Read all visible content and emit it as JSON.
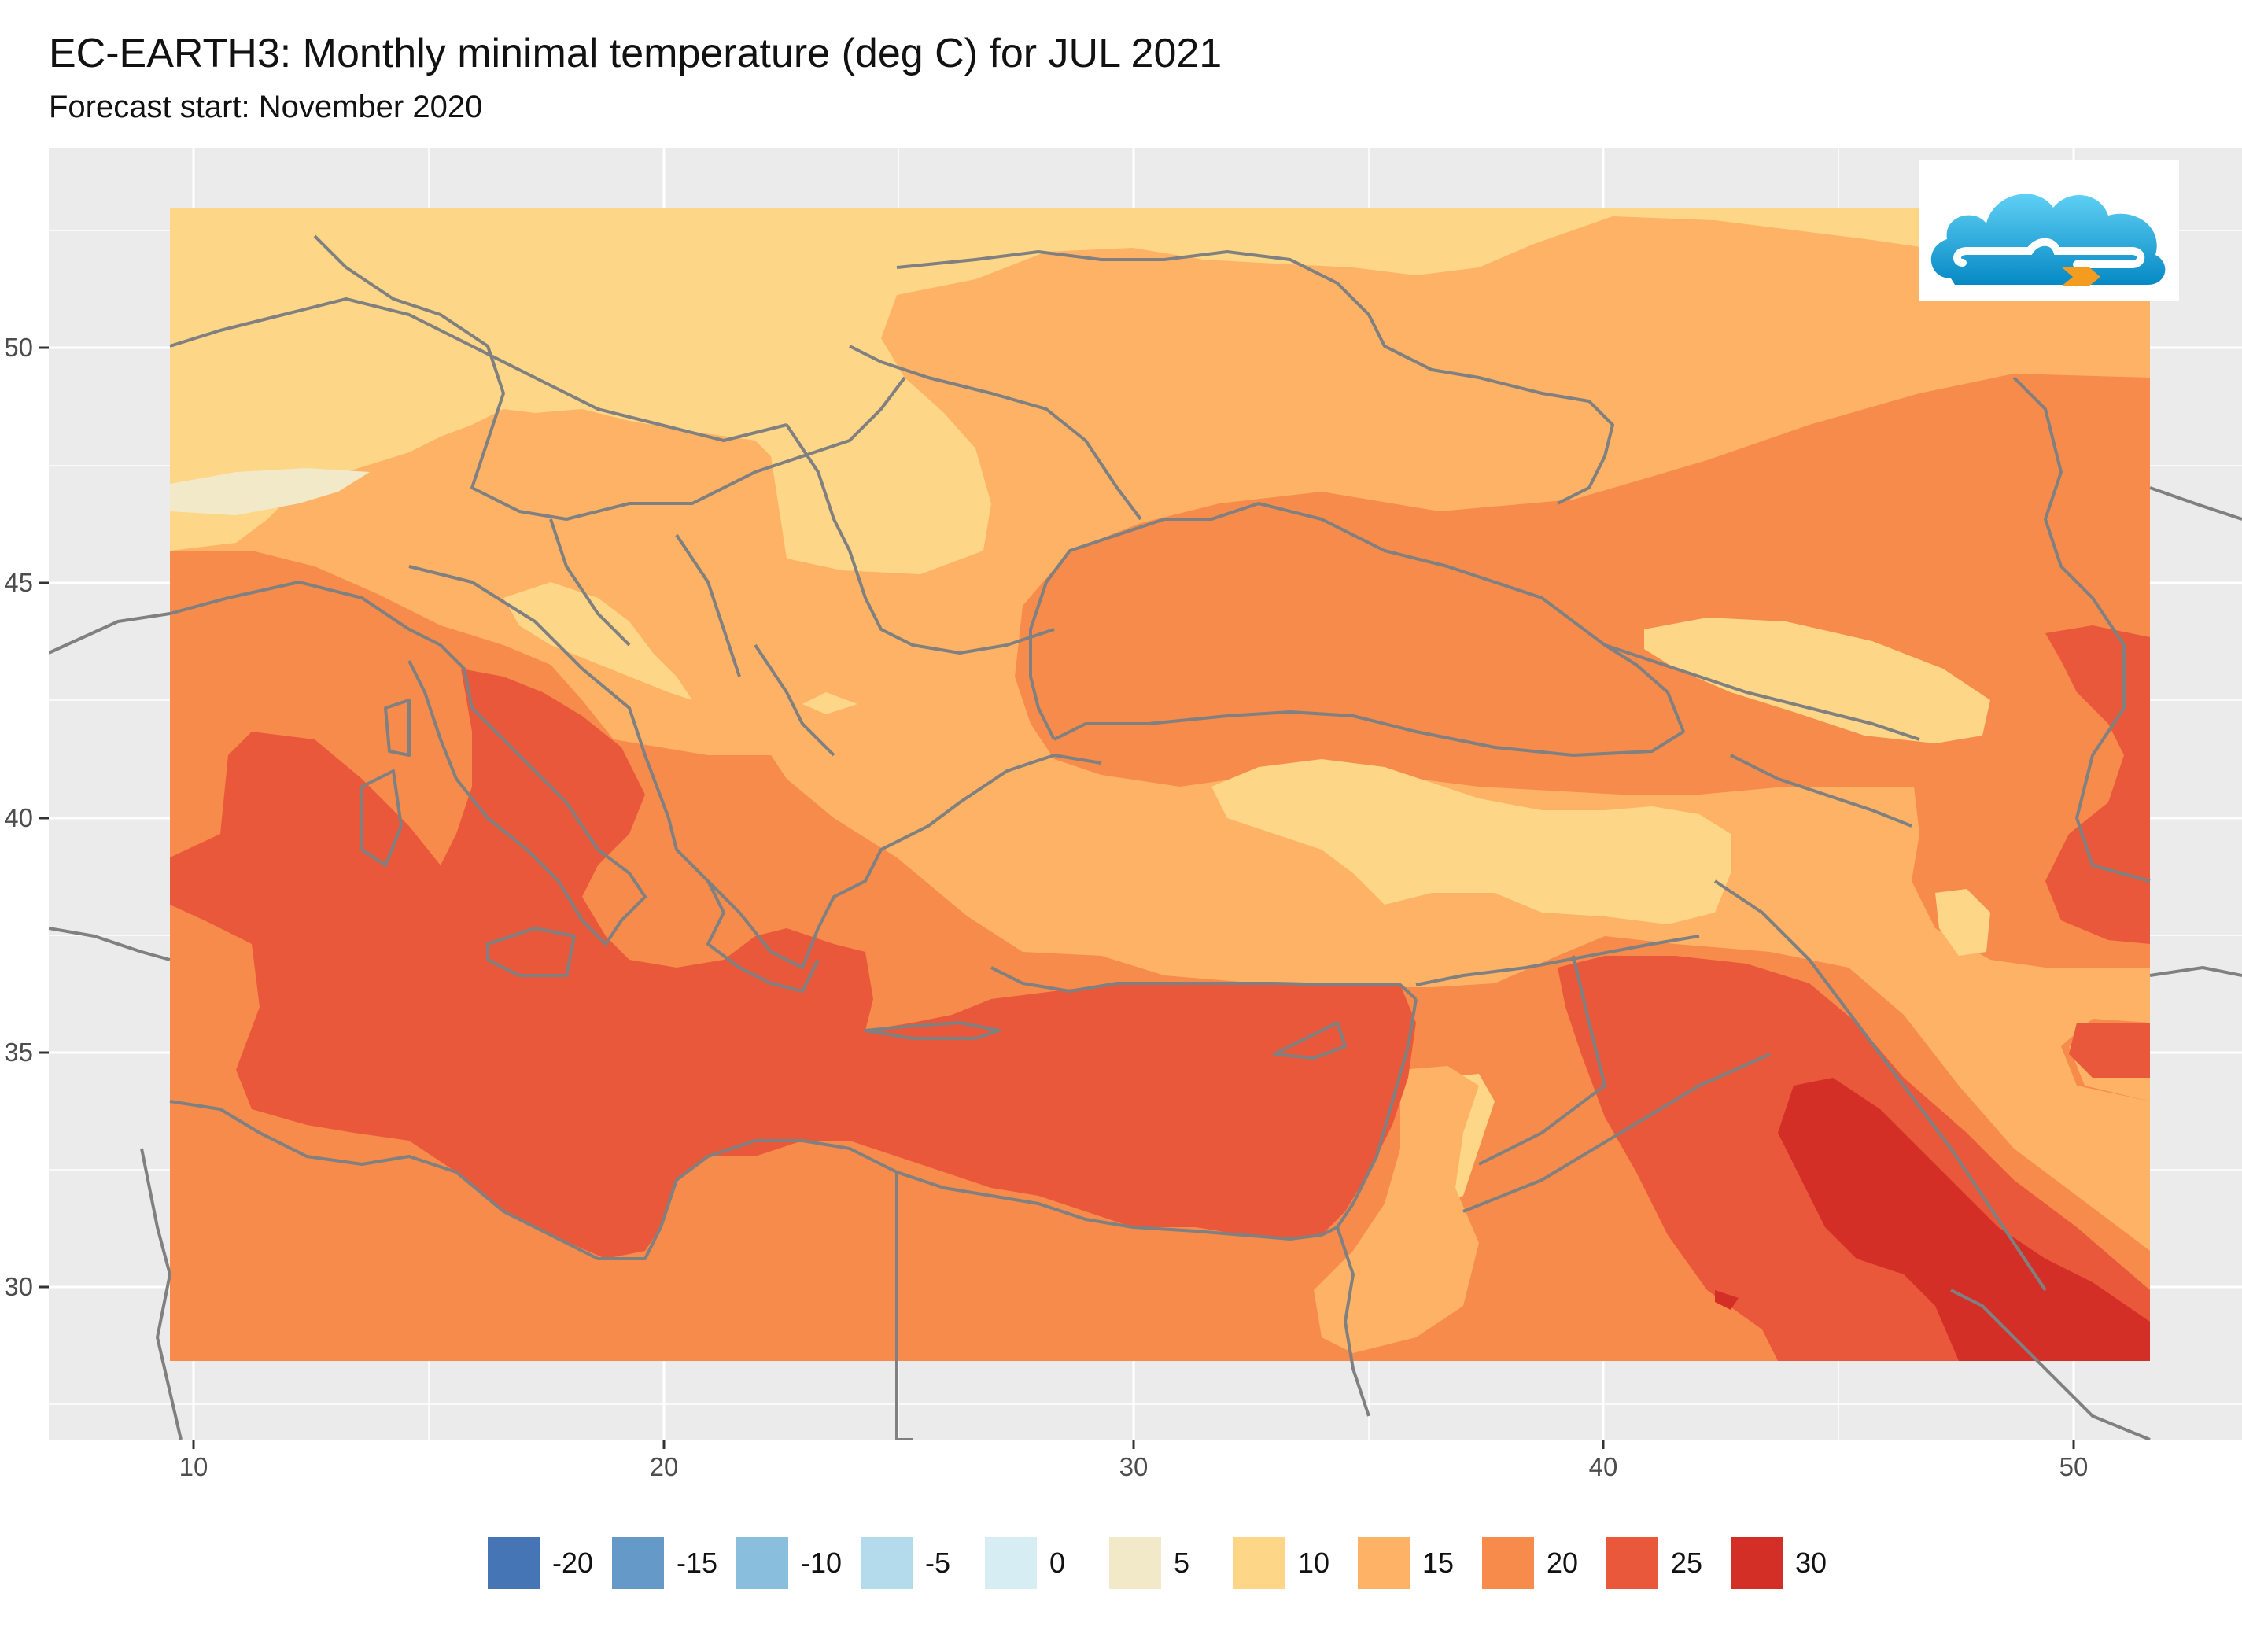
{
  "title": "EC-EARTH3: Monthly minimal temperature (deg C) for JUL 2021",
  "subtitle": "Forecast start: November 2020",
  "axes": {
    "x_ticks": [
      "10",
      "20",
      "30",
      "40",
      "50"
    ],
    "y_ticks": [
      "50",
      "45",
      "40",
      "35",
      "30"
    ]
  },
  "legend": {
    "items": [
      {
        "label": "-20",
        "color": "#4575b4"
      },
      {
        "label": "-15",
        "color": "#6499c8"
      },
      {
        "label": "-10",
        "color": "#89bedc"
      },
      {
        "label": "-5",
        "color": "#b3dbeb"
      },
      {
        "label": "0",
        "color": "#d6edf4"
      },
      {
        "label": "5",
        "color": "#f1e9c7"
      },
      {
        "label": "10",
        "color": "#fed687"
      },
      {
        "label": "15",
        "color": "#fdb266"
      },
      {
        "label": "20",
        "color": "#f68b4b"
      },
      {
        "label": "25",
        "color": "#e9583b"
      },
      {
        "label": "30",
        "color": "#d42f27"
      }
    ]
  },
  "map": {
    "extent": {
      "lon": [
        9.5,
        51.6
      ],
      "lat": [
        28.4,
        53
      ]
    },
    "panel_background": "#ebebeb",
    "grid_color": "#ffffff",
    "border_color": "#808080"
  },
  "logo": {
    "icon": "cloud-logo-icon",
    "colors": [
      "#0aa6dc",
      "#f39c1f"
    ]
  }
}
